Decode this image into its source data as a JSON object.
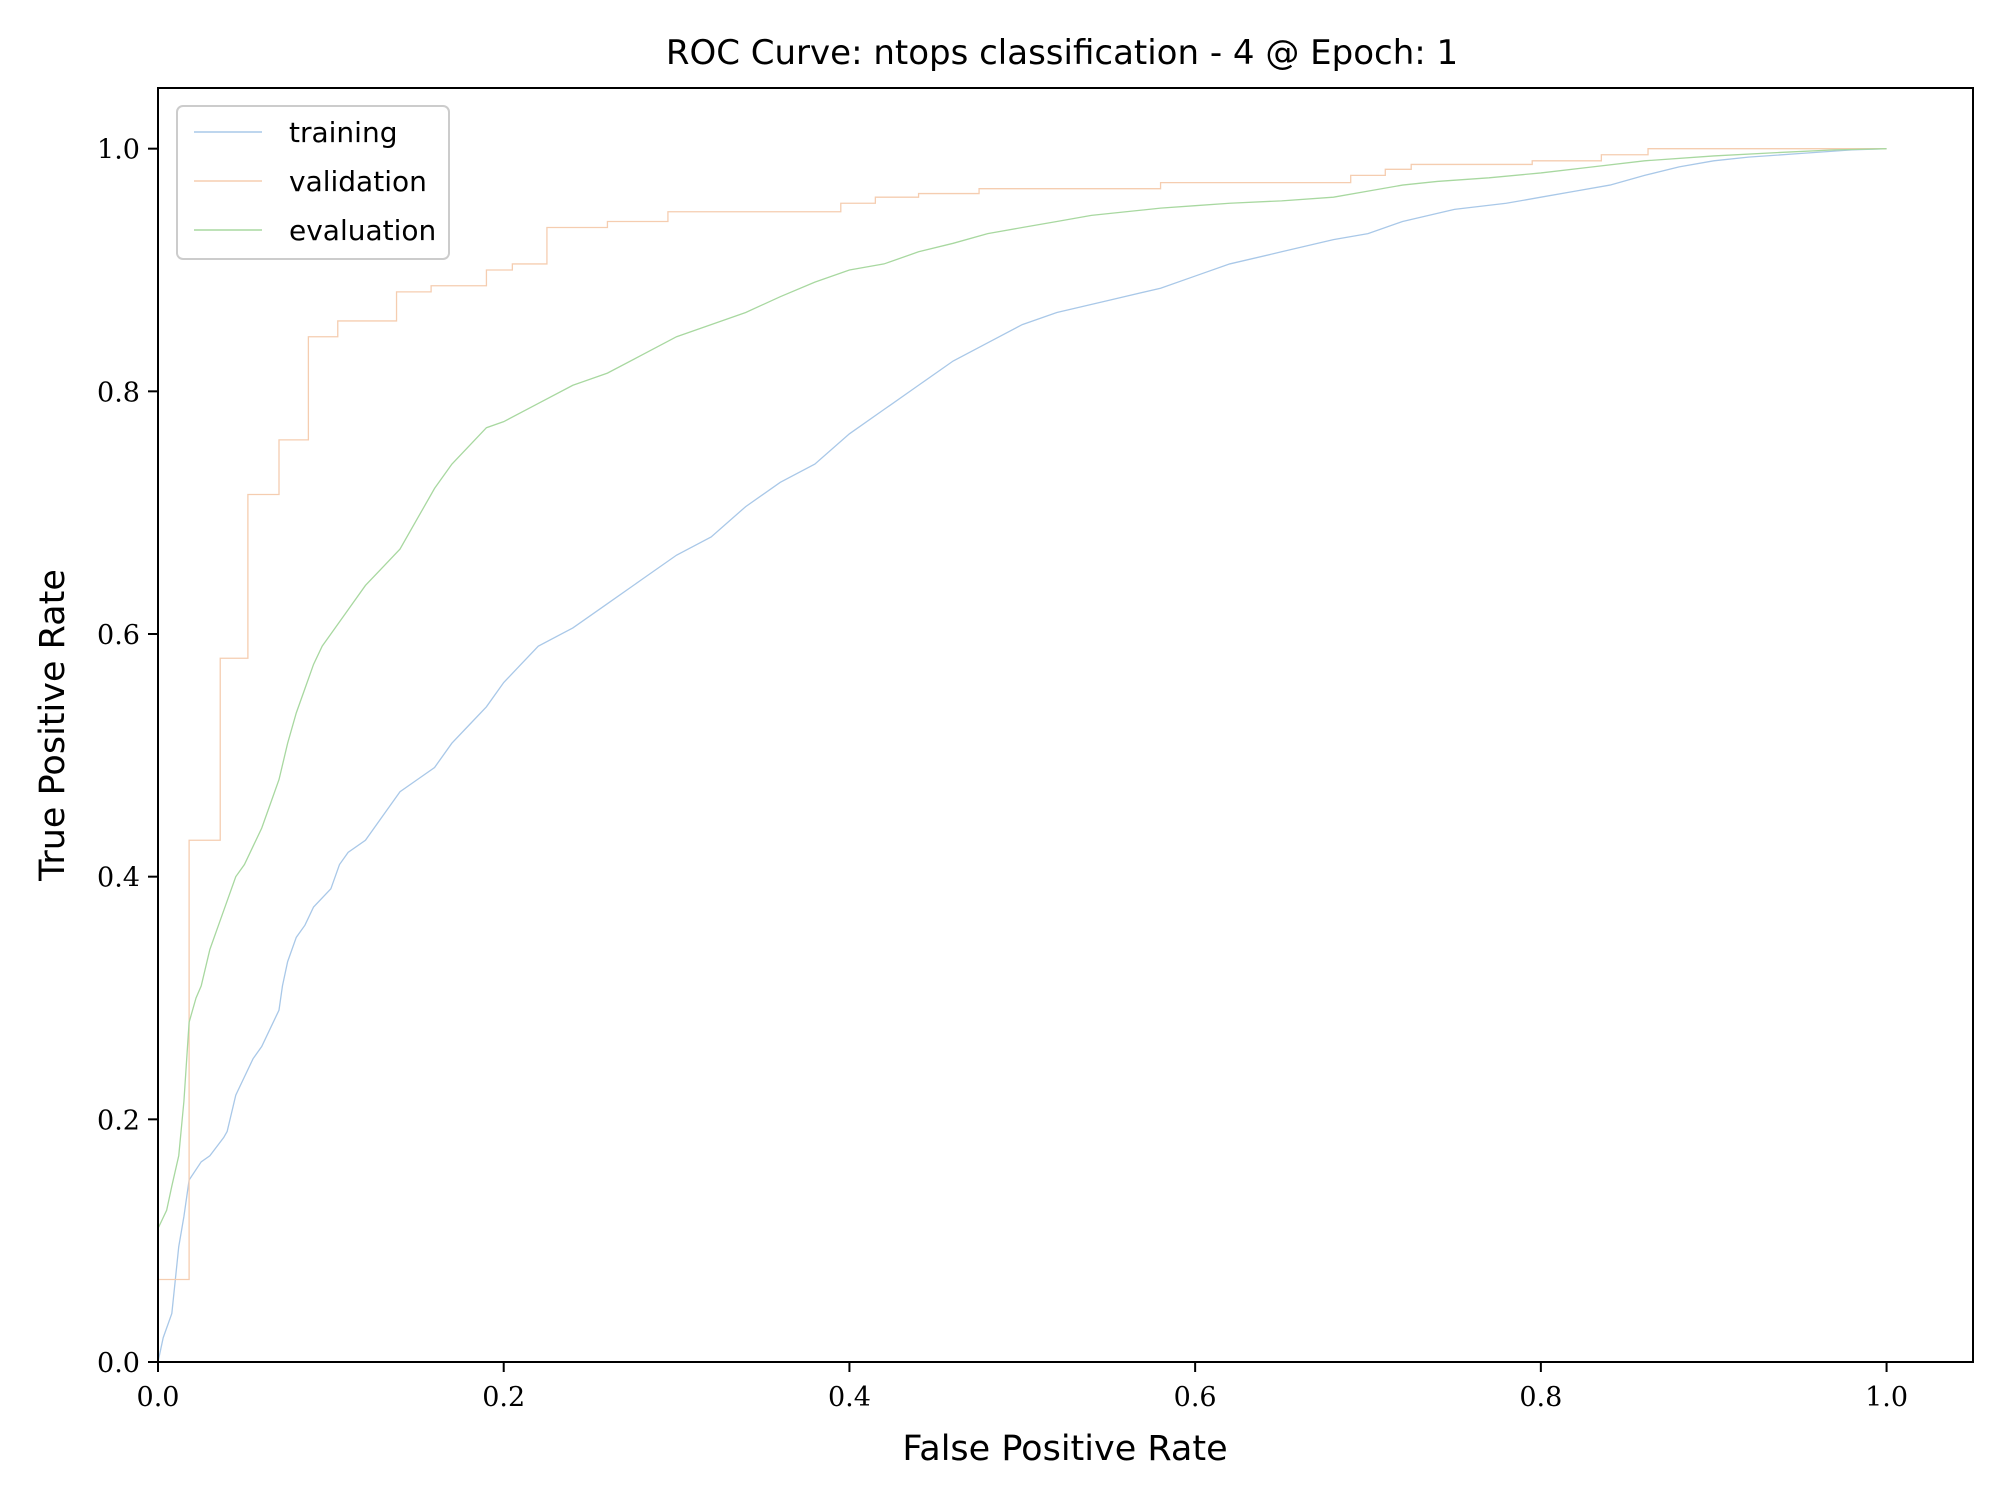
{
  "chart_data": {
    "type": "line",
    "title": "ROC Curve: ntops classification - 4 @ Epoch: 1",
    "xlabel": "False Positive Rate",
    "ylabel": "True Positive Rate",
    "xlim": [
      0.0,
      1.05
    ],
    "ylim": [
      0.0,
      1.05
    ],
    "x_ticks": [
      "0.0",
      "0.2",
      "0.4",
      "0.6",
      "0.8",
      "1.0"
    ],
    "y_ticks": [
      "0.0",
      "0.2",
      "0.4",
      "0.6",
      "0.8",
      "1.0"
    ],
    "grid": false,
    "legend_position": "top-left",
    "series": [
      {
        "name": "training",
        "color": "#a9c8e8",
        "points": [
          [
            0.0,
            0.0
          ],
          [
            0.003,
            0.02
          ],
          [
            0.008,
            0.04
          ],
          [
            0.012,
            0.095
          ],
          [
            0.015,
            0.12
          ],
          [
            0.018,
            0.15
          ],
          [
            0.025,
            0.165
          ],
          [
            0.03,
            0.17
          ],
          [
            0.038,
            0.185
          ],
          [
            0.04,
            0.19
          ],
          [
            0.045,
            0.22
          ],
          [
            0.05,
            0.235
          ],
          [
            0.055,
            0.25
          ],
          [
            0.06,
            0.26
          ],
          [
            0.065,
            0.275
          ],
          [
            0.07,
            0.29
          ],
          [
            0.072,
            0.31
          ],
          [
            0.075,
            0.33
          ],
          [
            0.08,
            0.35
          ],
          [
            0.085,
            0.36
          ],
          [
            0.09,
            0.375
          ],
          [
            0.1,
            0.39
          ],
          [
            0.105,
            0.41
          ],
          [
            0.11,
            0.42
          ],
          [
            0.12,
            0.43
          ],
          [
            0.13,
            0.45
          ],
          [
            0.14,
            0.47
          ],
          [
            0.15,
            0.48
          ],
          [
            0.16,
            0.49
          ],
          [
            0.17,
            0.51
          ],
          [
            0.18,
            0.525
          ],
          [
            0.19,
            0.54
          ],
          [
            0.2,
            0.56
          ],
          [
            0.21,
            0.575
          ],
          [
            0.22,
            0.59
          ],
          [
            0.24,
            0.605
          ],
          [
            0.26,
            0.625
          ],
          [
            0.28,
            0.645
          ],
          [
            0.3,
            0.665
          ],
          [
            0.32,
            0.68
          ],
          [
            0.34,
            0.705
          ],
          [
            0.36,
            0.725
          ],
          [
            0.38,
            0.74
          ],
          [
            0.4,
            0.765
          ],
          [
            0.42,
            0.785
          ],
          [
            0.44,
            0.805
          ],
          [
            0.46,
            0.825
          ],
          [
            0.48,
            0.84
          ],
          [
            0.5,
            0.855
          ],
          [
            0.52,
            0.865
          ],
          [
            0.55,
            0.875
          ],
          [
            0.58,
            0.885
          ],
          [
            0.6,
            0.895
          ],
          [
            0.62,
            0.905
          ],
          [
            0.65,
            0.915
          ],
          [
            0.68,
            0.925
          ],
          [
            0.7,
            0.93
          ],
          [
            0.72,
            0.94
          ],
          [
            0.75,
            0.95
          ],
          [
            0.78,
            0.955
          ],
          [
            0.8,
            0.96
          ],
          [
            0.82,
            0.965
          ],
          [
            0.84,
            0.97
          ],
          [
            0.86,
            0.978
          ],
          [
            0.88,
            0.985
          ],
          [
            0.9,
            0.99
          ],
          [
            0.92,
            0.993
          ],
          [
            0.95,
            0.996
          ],
          [
            0.98,
            0.999
          ],
          [
            1.0,
            1.0
          ]
        ]
      },
      {
        "name": "validation",
        "color": "#f5cdb0",
        "points": [
          [
            0.0,
            0.068
          ],
          [
            0.018,
            0.068
          ],
          [
            0.018,
            0.43
          ],
          [
            0.036,
            0.43
          ],
          [
            0.036,
            0.58
          ],
          [
            0.052,
            0.58
          ],
          [
            0.052,
            0.715
          ],
          [
            0.07,
            0.715
          ],
          [
            0.07,
            0.76
          ],
          [
            0.087,
            0.76
          ],
          [
            0.087,
            0.845
          ],
          [
            0.104,
            0.845
          ],
          [
            0.104,
            0.858
          ],
          [
            0.138,
            0.858
          ],
          [
            0.138,
            0.882
          ],
          [
            0.158,
            0.882
          ],
          [
            0.158,
            0.887
          ],
          [
            0.19,
            0.887
          ],
          [
            0.19,
            0.9
          ],
          [
            0.205,
            0.9
          ],
          [
            0.205,
            0.905
          ],
          [
            0.225,
            0.905
          ],
          [
            0.225,
            0.935
          ],
          [
            0.26,
            0.935
          ],
          [
            0.26,
            0.94
          ],
          [
            0.295,
            0.94
          ],
          [
            0.295,
            0.948
          ],
          [
            0.395,
            0.948
          ],
          [
            0.395,
            0.955
          ],
          [
            0.415,
            0.955
          ],
          [
            0.415,
            0.96
          ],
          [
            0.44,
            0.96
          ],
          [
            0.44,
            0.963
          ],
          [
            0.475,
            0.963
          ],
          [
            0.475,
            0.967
          ],
          [
            0.58,
            0.967
          ],
          [
            0.58,
            0.972
          ],
          [
            0.69,
            0.972
          ],
          [
            0.69,
            0.978
          ],
          [
            0.71,
            0.978
          ],
          [
            0.71,
            0.983
          ],
          [
            0.725,
            0.983
          ],
          [
            0.725,
            0.987
          ],
          [
            0.795,
            0.987
          ],
          [
            0.795,
            0.99
          ],
          [
            0.835,
            0.99
          ],
          [
            0.835,
            0.995
          ],
          [
            0.862,
            0.995
          ],
          [
            0.862,
            1.0
          ],
          [
            1.0,
            1.0
          ]
        ]
      },
      {
        "name": "evaluation",
        "color": "#a8d8a0",
        "points": [
          [
            0.0,
            0.11
          ],
          [
            0.005,
            0.125
          ],
          [
            0.008,
            0.145
          ],
          [
            0.012,
            0.17
          ],
          [
            0.015,
            0.215
          ],
          [
            0.018,
            0.28
          ],
          [
            0.022,
            0.3
          ],
          [
            0.025,
            0.31
          ],
          [
            0.03,
            0.34
          ],
          [
            0.035,
            0.36
          ],
          [
            0.04,
            0.38
          ],
          [
            0.045,
            0.4
          ],
          [
            0.05,
            0.41
          ],
          [
            0.055,
            0.425
          ],
          [
            0.06,
            0.44
          ],
          [
            0.065,
            0.46
          ],
          [
            0.07,
            0.48
          ],
          [
            0.075,
            0.51
          ],
          [
            0.08,
            0.535
          ],
          [
            0.085,
            0.555
          ],
          [
            0.09,
            0.575
          ],
          [
            0.095,
            0.59
          ],
          [
            0.1,
            0.6
          ],
          [
            0.11,
            0.62
          ],
          [
            0.12,
            0.64
          ],
          [
            0.13,
            0.655
          ],
          [
            0.14,
            0.67
          ],
          [
            0.15,
            0.695
          ],
          [
            0.16,
            0.72
          ],
          [
            0.17,
            0.74
          ],
          [
            0.18,
            0.755
          ],
          [
            0.19,
            0.77
          ],
          [
            0.2,
            0.775
          ],
          [
            0.22,
            0.79
          ],
          [
            0.24,
            0.805
          ],
          [
            0.26,
            0.815
          ],
          [
            0.28,
            0.83
          ],
          [
            0.3,
            0.845
          ],
          [
            0.32,
            0.855
          ],
          [
            0.34,
            0.865
          ],
          [
            0.36,
            0.878
          ],
          [
            0.38,
            0.89
          ],
          [
            0.4,
            0.9
          ],
          [
            0.42,
            0.905
          ],
          [
            0.44,
            0.915
          ],
          [
            0.46,
            0.922
          ],
          [
            0.48,
            0.93
          ],
          [
            0.5,
            0.935
          ],
          [
            0.52,
            0.94
          ],
          [
            0.54,
            0.945
          ],
          [
            0.56,
            0.948
          ],
          [
            0.58,
            0.951
          ],
          [
            0.6,
            0.953
          ],
          [
            0.62,
            0.955
          ],
          [
            0.65,
            0.957
          ],
          [
            0.68,
            0.96
          ],
          [
            0.7,
            0.965
          ],
          [
            0.72,
            0.97
          ],
          [
            0.74,
            0.973
          ],
          [
            0.77,
            0.976
          ],
          [
            0.8,
            0.98
          ],
          [
            0.83,
            0.985
          ],
          [
            0.86,
            0.99
          ],
          [
            0.9,
            0.994
          ],
          [
            0.94,
            0.997
          ],
          [
            0.97,
            0.999
          ],
          [
            1.0,
            1.0
          ]
        ]
      }
    ]
  }
}
